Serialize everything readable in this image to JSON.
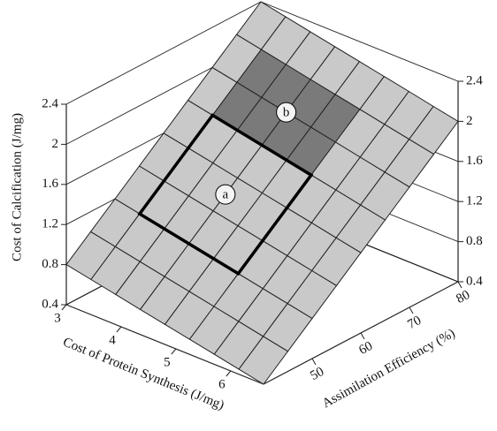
{
  "chart_data": {
    "type": "surface",
    "xlabel": "Cost of Protein Synthesis (J/mg)",
    "ylabel": "Assimilation Efficiency (%)",
    "zlabel": "Cost of Calcification (J/mg)",
    "xlim": [
      3,
      6.6
    ],
    "xticks": [
      3,
      4,
      5,
      6
    ],
    "ylim": [
      40,
      80
    ],
    "yticks": [
      50,
      60,
      70,
      80
    ],
    "zlim": [
      0.4,
      2.4
    ],
    "zticks": [
      0.4,
      0.8,
      1.2,
      1.6,
      2,
      2.4
    ],
    "x_grid": [
      3,
      3.45,
      3.9,
      4.35,
      4.8,
      5.25,
      5.7,
      6.15,
      6.6
    ],
    "y_grid": [
      40,
      45,
      50,
      55,
      60,
      65,
      70,
      75,
      80
    ],
    "z": [
      [
        0.8,
        0.75,
        0.7,
        0.65,
        0.6,
        0.55,
        0.5,
        0.45,
        0.4
      ],
      [
        1.0,
        0.95,
        0.9,
        0.85,
        0.8,
        0.75,
        0.7,
        0.65,
        0.6
      ],
      [
        1.2,
        1.15,
        1.1,
        1.05,
        1.0,
        0.95,
        0.9,
        0.85,
        0.8
      ],
      [
        1.4,
        1.35,
        1.3,
        1.25,
        1.2,
        1.15,
        1.1,
        1.05,
        1.0
      ],
      [
        1.6,
        1.55,
        1.5,
        1.45,
        1.4,
        1.35,
        1.3,
        1.25,
        1.2
      ],
      [
        1.8,
        1.75,
        1.7,
        1.65,
        1.6,
        1.55,
        1.5,
        1.45,
        1.4
      ],
      [
        2.0,
        1.95,
        1.9,
        1.85,
        1.8,
        1.75,
        1.7,
        1.65,
        1.6
      ],
      [
        2.2,
        2.15,
        2.1,
        2.05,
        2.0,
        1.95,
        1.9,
        1.85,
        1.8
      ],
      [
        2.4,
        2.35,
        2.3,
        2.25,
        2.2,
        2.15,
        2.1,
        2.05,
        2.0
      ]
    ],
    "surface_color": "#c9c9c9",
    "regions": [
      {
        "label": "a",
        "xrange": [
          3.45,
          5.25
        ],
        "yrange": [
          50,
          65
        ],
        "style": "outline"
      },
      {
        "label": "b",
        "xrange": [
          3.45,
          5.25
        ],
        "yrange": [
          65,
          75
        ],
        "style": "shaded",
        "color": "#7a7a7a"
      }
    ]
  }
}
